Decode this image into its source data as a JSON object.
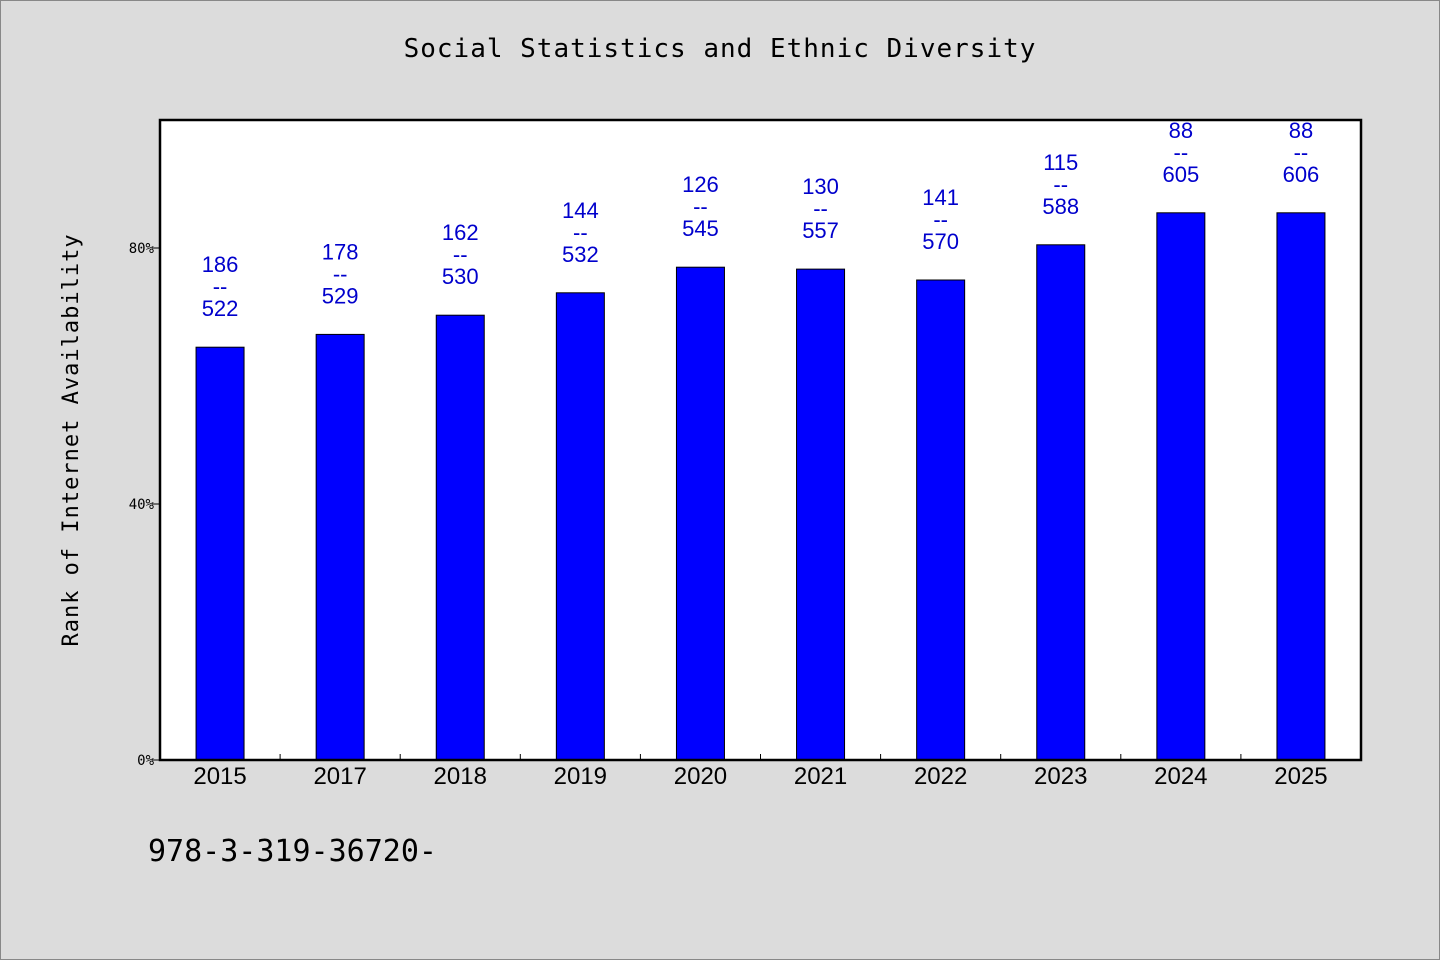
{
  "chart_data": {
    "type": "bar",
    "title": "Social Statistics and Ethnic Diversity",
    "xlabel": "",
    "ylabel": "Rank of Internet Availability",
    "categories": [
      "2015",
      "2017",
      "2018",
      "2019",
      "2020",
      "2021",
      "2022",
      "2023",
      "2024",
      "2025"
    ],
    "values": [
      64.5,
      66.5,
      69.5,
      73,
      77,
      76.7,
      75,
      80.5,
      85.5,
      85.5
    ],
    "value_labels": [
      {
        "top": "186",
        "sep": "--",
        "bottom": "522"
      },
      {
        "top": "178",
        "sep": "--",
        "bottom": "529"
      },
      {
        "top": "162",
        "sep": "--",
        "bottom": "530"
      },
      {
        "top": "144",
        "sep": "--",
        "bottom": "532"
      },
      {
        "top": "126",
        "sep": "--",
        "bottom": "545"
      },
      {
        "top": "130",
        "sep": "--",
        "bottom": "557"
      },
      {
        "top": "141",
        "sep": "--",
        "bottom": "570"
      },
      {
        "top": "115",
        "sep": "--",
        "bottom": "588"
      },
      {
        "top": "88",
        "sep": "--",
        "bottom": "605"
      },
      {
        "top": "88",
        "sep": "--",
        "bottom": "606"
      }
    ],
    "y_ticks": [
      {
        "value": 0,
        "label": "0%"
      },
      {
        "value": 40,
        "label": "40%"
      },
      {
        "value": 80,
        "label": "80%"
      }
    ],
    "ylim": [
      0,
      100
    ],
    "grid": false,
    "colors": {
      "bar": "#0000ff",
      "value_label": "#0000cc",
      "plot_bg": "#ffffff",
      "page_bg": "#dcdcdc"
    }
  },
  "footer_code": "978-3-319-36720-"
}
